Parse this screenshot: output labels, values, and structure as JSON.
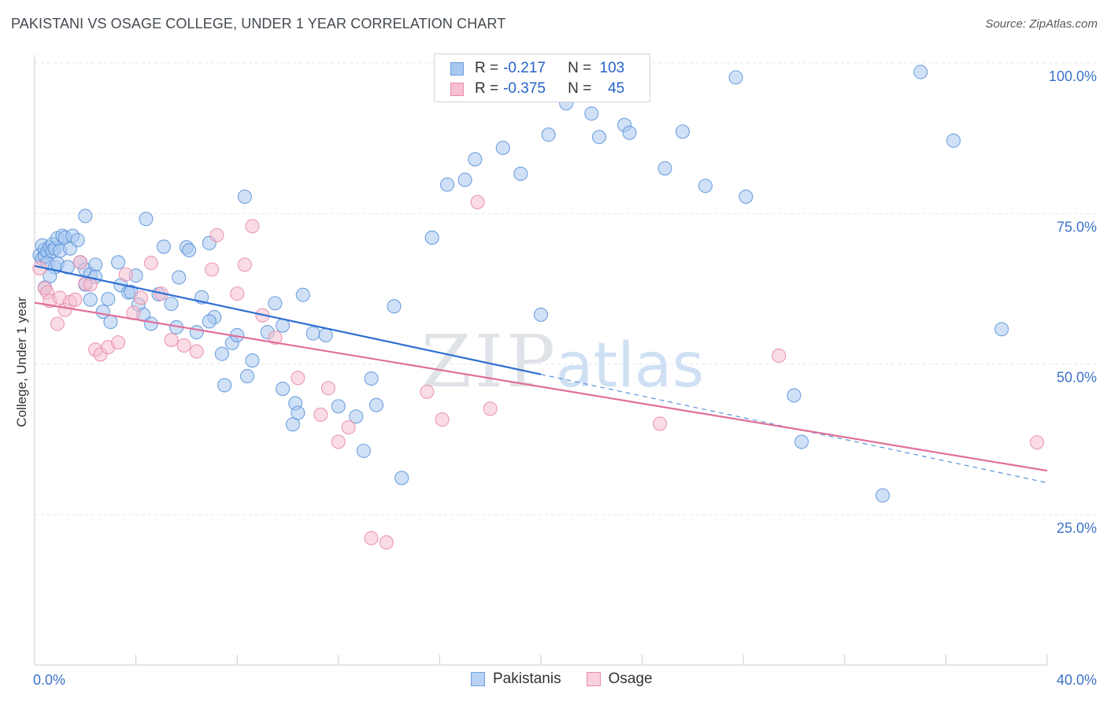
{
  "header": {
    "title": "PAKISTANI VS OSAGE COLLEGE, UNDER 1 YEAR CORRELATION CHART",
    "source": "Source: ZipAtlas.com"
  },
  "watermark": {
    "zip": "ZIP",
    "atlas": "atlas"
  },
  "legend": {
    "rows": [
      {
        "r_label": "R =",
        "r_value": "-0.217",
        "n_label": "N =",
        "n_value": "103",
        "color": "#a9c8f0",
        "border": "#6c9fe0"
      },
      {
        "r_label": "R =",
        "r_value": "-0.375",
        "n_label": "N =",
        "n_value": "45",
        "color": "#f6c0d0",
        "border": "#e88aa8"
      }
    ]
  },
  "bottom_legend": {
    "items": [
      {
        "label": "Pakistanis",
        "color": "#b7d2f4",
        "border": "#6c9fe0"
      },
      {
        "label": "Osage",
        "color": "#f9d0dc",
        "border": "#e88aa8"
      }
    ]
  },
  "chart_data": {
    "type": "scatter",
    "title": "PAKISTANI VS OSAGE COLLEGE, UNDER 1 YEAR CORRELATION CHART",
    "xlabel": "",
    "ylabel": "College, Under 1 year",
    "xlim": [
      0,
      40
    ],
    "ylim": [
      0,
      102
    ],
    "x_tick_labels": [
      {
        "value": 0,
        "label": "0.0%"
      },
      {
        "value": 40,
        "label": "40.0%"
      }
    ],
    "y_tick_labels": [
      {
        "value": 25,
        "label": "25.0%"
      },
      {
        "value": 50,
        "label": "50.0%"
      },
      {
        "value": 75,
        "label": "75.0%"
      },
      {
        "value": 100,
        "label": "100.0%"
      }
    ],
    "grid": true,
    "legend_position": "top-center",
    "series": [
      {
        "name": "Pakistanis",
        "color": "#5b93d9",
        "fill": "#a9c8f0",
        "points": [
          [
            0.2,
            68.1
          ],
          [
            0.3,
            69.7
          ],
          [
            0.3,
            67.5
          ],
          [
            0.4,
            69.0
          ],
          [
            0.4,
            67.9
          ],
          [
            0.5,
            68.7
          ],
          [
            0.5,
            66.9
          ],
          [
            0.6,
            69.4
          ],
          [
            0.7,
            69.9
          ],
          [
            0.7,
            68.7
          ],
          [
            0.8,
            69.2
          ],
          [
            0.8,
            66.1
          ],
          [
            0.9,
            66.7
          ],
          [
            0.9,
            70.9
          ],
          [
            1.0,
            68.8
          ],
          [
            1.1,
            71.3
          ],
          [
            1.2,
            71.0
          ],
          [
            1.4,
            69.2
          ],
          [
            1.5,
            71.3
          ],
          [
            1.7,
            70.6
          ],
          [
            1.8,
            66.9
          ],
          [
            2.0,
            63.2
          ],
          [
            2.0,
            65.7
          ],
          [
            2.2,
            64.9
          ],
          [
            2.2,
            60.7
          ],
          [
            2.4,
            66.5
          ],
          [
            2.4,
            64.5
          ],
          [
            2.7,
            58.7
          ],
          [
            2.9,
            60.8
          ],
          [
            3.3,
            66.9
          ],
          [
            3.4,
            63.1
          ],
          [
            3.7,
            61.9
          ],
          [
            3.8,
            62.0
          ],
          [
            4.0,
            64.7
          ],
          [
            4.1,
            59.9
          ],
          [
            4.3,
            58.2
          ],
          [
            4.6,
            56.7
          ],
          [
            4.9,
            61.6
          ],
          [
            5.1,
            69.5
          ],
          [
            5.4,
            60.0
          ],
          [
            5.6,
            56.1
          ],
          [
            5.7,
            64.4
          ],
          [
            6.0,
            69.4
          ],
          [
            6.1,
            68.9
          ],
          [
            6.4,
            55.3
          ],
          [
            6.6,
            61.1
          ],
          [
            6.9,
            70.1
          ],
          [
            7.1,
            57.8
          ],
          [
            7.4,
            51.7
          ],
          [
            7.5,
            46.5
          ],
          [
            7.8,
            53.5
          ],
          [
            8.0,
            54.8
          ],
          [
            8.4,
            48.0
          ],
          [
            8.6,
            50.6
          ],
          [
            9.2,
            55.3
          ],
          [
            9.5,
            60.1
          ],
          [
            9.8,
            56.4
          ],
          [
            10.2,
            40.0
          ],
          [
            10.3,
            43.5
          ],
          [
            10.6,
            61.5
          ],
          [
            11.0,
            55.1
          ],
          [
            11.5,
            54.8
          ],
          [
            12.0,
            43.0
          ],
          [
            12.7,
            41.3
          ],
          [
            13.0,
            35.6
          ],
          [
            13.3,
            47.6
          ],
          [
            13.5,
            43.2
          ],
          [
            14.2,
            59.6
          ],
          [
            14.5,
            31.1
          ],
          [
            15.7,
            71.0
          ],
          [
            16.3,
            79.8
          ],
          [
            17.0,
            80.6
          ],
          [
            17.4,
            84.0
          ],
          [
            18.5,
            85.9
          ],
          [
            19.2,
            81.6
          ],
          [
            20.0,
            58.2
          ],
          [
            20.3,
            88.1
          ],
          [
            21.0,
            93.3
          ],
          [
            22.0,
            91.6
          ],
          [
            22.3,
            87.7
          ],
          [
            23.3,
            89.7
          ],
          [
            23.5,
            88.4
          ],
          [
            24.9,
            82.5
          ],
          [
            25.6,
            88.6
          ],
          [
            26.5,
            79.6
          ],
          [
            27.7,
            97.6
          ],
          [
            28.1,
            77.8
          ],
          [
            30.0,
            44.8
          ],
          [
            30.3,
            37.1
          ],
          [
            33.5,
            28.2
          ],
          [
            35.0,
            98.5
          ],
          [
            36.3,
            87.1
          ],
          [
            38.2,
            55.8
          ],
          [
            9.8,
            45.9
          ],
          [
            10.4,
            41.9
          ],
          [
            0.6,
            64.6
          ],
          [
            1.3,
            66.1
          ],
          [
            0.4,
            62.7
          ],
          [
            3.0,
            57.0
          ],
          [
            6.9,
            57.1
          ],
          [
            8.3,
            77.8
          ],
          [
            4.4,
            74.1
          ],
          [
            2.0,
            74.6
          ]
        ]
      },
      {
        "name": "Osage",
        "color": "#e88aa8",
        "fill": "#f6c0d0",
        "points": [
          [
            0.2,
            65.9
          ],
          [
            0.4,
            62.6
          ],
          [
            0.5,
            61.9
          ],
          [
            0.6,
            60.5
          ],
          [
            0.9,
            56.7
          ],
          [
            1.0,
            61.0
          ],
          [
            1.2,
            59.0
          ],
          [
            1.4,
            60.3
          ],
          [
            1.6,
            60.7
          ],
          [
            1.8,
            66.9
          ],
          [
            2.0,
            63.4
          ],
          [
            2.2,
            63.2
          ],
          [
            2.4,
            52.4
          ],
          [
            2.6,
            51.6
          ],
          [
            2.9,
            52.8
          ],
          [
            3.3,
            53.6
          ],
          [
            3.6,
            64.9
          ],
          [
            3.9,
            58.5
          ],
          [
            4.2,
            61.0
          ],
          [
            4.6,
            66.8
          ],
          [
            5.0,
            61.7
          ],
          [
            5.4,
            54.0
          ],
          [
            5.9,
            53.1
          ],
          [
            6.4,
            52.1
          ],
          [
            7.0,
            65.7
          ],
          [
            7.2,
            71.4
          ],
          [
            8.0,
            61.7
          ],
          [
            8.3,
            66.5
          ],
          [
            8.6,
            72.9
          ],
          [
            9.0,
            58.1
          ],
          [
            9.5,
            54.4
          ],
          [
            10.4,
            47.7
          ],
          [
            11.3,
            41.6
          ],
          [
            11.6,
            46.0
          ],
          [
            12.0,
            37.1
          ],
          [
            12.4,
            39.5
          ],
          [
            13.3,
            21.1
          ],
          [
            13.9,
            20.4
          ],
          [
            15.5,
            45.4
          ],
          [
            16.1,
            40.8
          ],
          [
            17.5,
            76.9
          ],
          [
            18.0,
            42.6
          ],
          [
            24.7,
            40.1
          ],
          [
            29.4,
            51.4
          ],
          [
            39.6,
            37.0
          ]
        ]
      }
    ],
    "trend_lines": [
      {
        "series": "Pakistanis",
        "x_start": 0,
        "y_start": 66.3,
        "x_end": 20.0,
        "y_end": 48.3,
        "dashed_extension_to": [
          40.0,
          30.3
        ]
      },
      {
        "series": "Osage",
        "x_start": 0,
        "y_start": 60.2,
        "x_end": 40.0,
        "y_end": 32.3
      }
    ]
  }
}
